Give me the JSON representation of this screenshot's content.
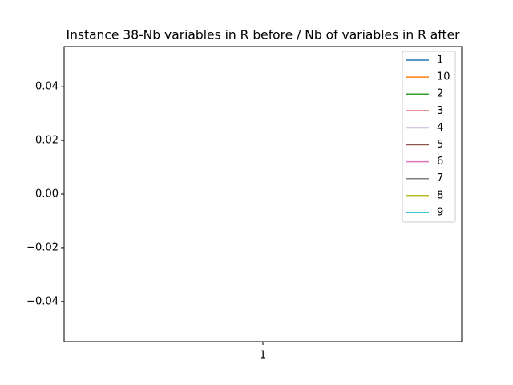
{
  "chart_data": {
    "type": "line",
    "title": "Instance 38-Nb variables in R before / Nb of variables in R after",
    "categories": [
      "1"
    ],
    "series": [
      {
        "name": "1",
        "color": "#1f77b4",
        "values": [
          0
        ]
      },
      {
        "name": "10",
        "color": "#ff7f0e",
        "values": [
          0
        ]
      },
      {
        "name": "2",
        "color": "#2ca02c",
        "values": [
          0
        ]
      },
      {
        "name": "3",
        "color": "#d62728",
        "values": [
          0
        ]
      },
      {
        "name": "4",
        "color": "#9467bd",
        "values": [
          0
        ]
      },
      {
        "name": "5",
        "color": "#8c564b",
        "values": [
          0
        ]
      },
      {
        "name": "6",
        "color": "#e377c2",
        "values": [
          0
        ]
      },
      {
        "name": "7",
        "color": "#7f7f7f",
        "values": [
          0
        ]
      },
      {
        "name": "8",
        "color": "#bcbd22",
        "values": [
          0
        ]
      },
      {
        "name": "9",
        "color": "#17becf",
        "values": [
          0
        ]
      }
    ],
    "ylim": [
      -0.055,
      0.055
    ],
    "yticks": [
      {
        "value": -0.04,
        "label": "−0.04"
      },
      {
        "value": -0.02,
        "label": "−0.02"
      },
      {
        "value": 0,
        "label": "0.00"
      },
      0.02,
      0.04
    ],
    "legend": "upper right",
    "grid": false
  }
}
